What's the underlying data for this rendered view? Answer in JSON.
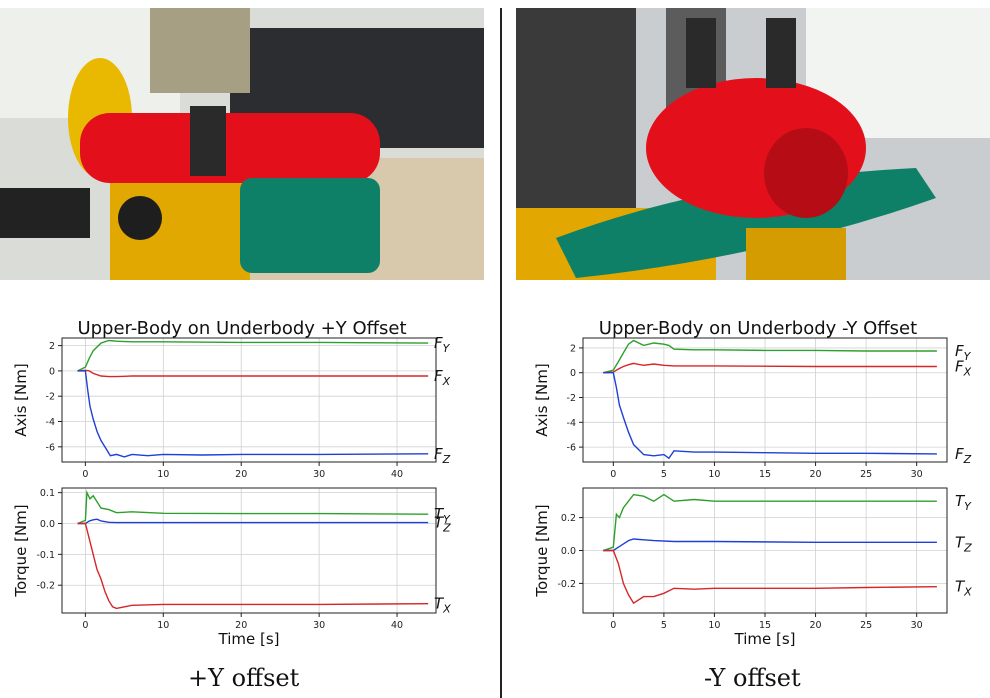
{
  "captions": {
    "left": "+Y offset",
    "right": "-Y offset"
  },
  "chart_data": [
    {
      "type": "line",
      "title": "Upper-Body on Underbody +Y Offset",
      "panels": [
        {
          "ylabel": "Axis [Nm]",
          "xlim": [
            -3,
            45
          ],
          "ylim": [
            -7.2,
            2.6
          ],
          "yticks": [
            2,
            0,
            -2,
            -4,
            -6
          ],
          "xticks": [
            0,
            10,
            20,
            30,
            40
          ],
          "series": [
            {
              "name": "F_Y",
              "color": "#2ca02c",
              "x": [
                -1,
                0,
                0.5,
                1,
                2,
                3,
                4,
                6,
                10,
                20,
                30,
                44
              ],
              "y": [
                0,
                0.3,
                1.0,
                1.6,
                2.2,
                2.4,
                2.35,
                2.3,
                2.3,
                2.25,
                2.25,
                2.2
              ]
            },
            {
              "name": "F_X",
              "color": "#d62728",
              "x": [
                -1,
                0,
                0.5,
                1,
                2,
                3,
                4,
                6,
                10,
                20,
                30,
                44
              ],
              "y": [
                0,
                0.05,
                0,
                -0.2,
                -0.4,
                -0.45,
                -0.45,
                -0.4,
                -0.4,
                -0.4,
                -0.4,
                -0.4
              ]
            },
            {
              "name": "F_Z",
              "color": "#1f3fd6",
              "x": [
                -1,
                0,
                0.3,
                0.6,
                1,
                1.5,
                2,
                2.7,
                3.2,
                4,
                5,
                6,
                8,
                10,
                15,
                20,
                30,
                44
              ],
              "y": [
                0,
                0,
                -1.5,
                -2.8,
                -3.8,
                -4.8,
                -5.5,
                -6.2,
                -6.7,
                -6.6,
                -6.8,
                -6.6,
                -6.7,
                -6.6,
                -6.65,
                -6.6,
                -6.6,
                -6.55
              ]
            }
          ],
          "end_labels": [
            "F_Y",
            "F_X",
            "F_Z"
          ]
        },
        {
          "ylabel": "Torque [Nm]",
          "xlabel": "Time [s]",
          "xlim": [
            -3,
            45
          ],
          "ylim": [
            -0.29,
            0.115
          ],
          "yticks": [
            0.1,
            0.0,
            -0.1,
            -0.2
          ],
          "xticks": [
            0,
            10,
            20,
            30,
            40
          ],
          "series": [
            {
              "name": "T_Y",
              "color": "#2ca02c",
              "x": [
                -1,
                0,
                0.2,
                0.6,
                1,
                1.5,
                2,
                3,
                4,
                6,
                10,
                20,
                30,
                44
              ],
              "y": [
                0,
                0.01,
                0.1,
                0.08,
                0.09,
                0.07,
                0.05,
                0.045,
                0.035,
                0.038,
                0.033,
                0.032,
                0.032,
                0.03
              ]
            },
            {
              "name": "T_Z",
              "color": "#1f3fd6",
              "x": [
                -1,
                0,
                0.5,
                1,
                1.5,
                2,
                3,
                4,
                6,
                10,
                20,
                30,
                44
              ],
              "y": [
                0,
                0,
                0.008,
                0.012,
                0.014,
                0.008,
                0.004,
                0.003,
                0.003,
                0.003,
                0.003,
                0.003,
                0.003
              ]
            },
            {
              "name": "T_X",
              "color": "#d62728",
              "x": [
                -1,
                0,
                0.5,
                1,
                1.5,
                2,
                2.5,
                3,
                3.5,
                4,
                6,
                10,
                20,
                30,
                44
              ],
              "y": [
                0,
                0,
                -0.05,
                -0.1,
                -0.15,
                -0.18,
                -0.22,
                -0.25,
                -0.27,
                -0.275,
                -0.265,
                -0.262,
                -0.262,
                -0.262,
                -0.26
              ]
            }
          ],
          "end_labels": [
            "T_Y",
            "T_Z",
            "T_X"
          ]
        }
      ]
    },
    {
      "type": "line",
      "title": "Upper-Body on Underbody -Y Offset",
      "panels": [
        {
          "ylabel": "Axis [Nm]",
          "xlim": [
            -3,
            33
          ],
          "ylim": [
            -7.2,
            2.8
          ],
          "yticks": [
            2,
            0,
            -2,
            -4,
            -6
          ],
          "xticks": [
            0,
            5,
            10,
            15,
            20,
            25,
            30
          ],
          "series": [
            {
              "name": "F_Y",
              "color": "#2ca02c",
              "x": [
                -1,
                0,
                0.5,
                1,
                1.5,
                2,
                3,
                4,
                5,
                5.5,
                6,
                8,
                10,
                15,
                20,
                25,
                32
              ],
              "y": [
                0,
                0.2,
                0.9,
                1.6,
                2.3,
                2.6,
                2.2,
                2.4,
                2.3,
                2.2,
                1.9,
                1.85,
                1.85,
                1.8,
                1.8,
                1.75,
                1.75
              ]
            },
            {
              "name": "F_X",
              "color": "#d62728",
              "x": [
                -1,
                0,
                0.5,
                1,
                1.5,
                2,
                3,
                4,
                5,
                6,
                10,
                20,
                32
              ],
              "y": [
                0,
                0.05,
                0.3,
                0.5,
                0.65,
                0.75,
                0.6,
                0.7,
                0.6,
                0.55,
                0.55,
                0.5,
                0.5
              ]
            },
            {
              "name": "F_Z",
              "color": "#1f3fd6",
              "x": [
                -1,
                0,
                0.3,
                0.6,
                1,
                1.5,
                2,
                3,
                4,
                5,
                5.5,
                6,
                8,
                10,
                15,
                20,
                25,
                32
              ],
              "y": [
                0,
                0,
                -1.2,
                -2.6,
                -3.6,
                -4.8,
                -5.8,
                -6.6,
                -6.7,
                -6.6,
                -6.9,
                -6.3,
                -6.4,
                -6.4,
                -6.45,
                -6.5,
                -6.5,
                -6.55
              ]
            }
          ],
          "end_labels": [
            "F_Y",
            "F_X",
            "F_Z"
          ]
        },
        {
          "ylabel": "Torque [Nm]",
          "xlabel": "Time [s]",
          "xlim": [
            -3,
            33
          ],
          "ylim": [
            -0.38,
            0.38
          ],
          "yticks": [
            0.2,
            0.0,
            -0.2
          ],
          "xticks": [
            0,
            5,
            10,
            15,
            20,
            25,
            30
          ],
          "series": [
            {
              "name": "T_Y",
              "color": "#2ca02c",
              "x": [
                -1,
                0,
                0.3,
                0.6,
                1,
                1.5,
                2,
                3,
                4,
                5,
                6,
                8,
                10,
                15,
                20,
                25,
                32
              ],
              "y": [
                0,
                0.02,
                0.22,
                0.2,
                0.26,
                0.3,
                0.34,
                0.33,
                0.3,
                0.34,
                0.3,
                0.31,
                0.3,
                0.3,
                0.3,
                0.3,
                0.3
              ]
            },
            {
              "name": "T_Z",
              "color": "#1f3fd6",
              "x": [
                -1,
                0,
                0.5,
                1,
                1.5,
                2,
                3,
                4,
                6,
                10,
                20,
                32
              ],
              "y": [
                0,
                0,
                0.02,
                0.04,
                0.06,
                0.07,
                0.065,
                0.06,
                0.055,
                0.055,
                0.05,
                0.05
              ]
            },
            {
              "name": "T_X",
              "color": "#d62728",
              "x": [
                -1,
                0,
                0.5,
                1,
                1.5,
                2,
                3,
                4,
                5,
                6,
                8,
                10,
                15,
                20,
                25,
                32
              ],
              "y": [
                0,
                0,
                -0.08,
                -0.2,
                -0.27,
                -0.32,
                -0.28,
                -0.28,
                -0.26,
                -0.23,
                -0.235,
                -0.23,
                -0.23,
                -0.23,
                -0.225,
                -0.22
              ]
            }
          ],
          "end_labels": [
            "T_Y",
            "T_Z",
            "T_X"
          ]
        }
      ]
    }
  ]
}
